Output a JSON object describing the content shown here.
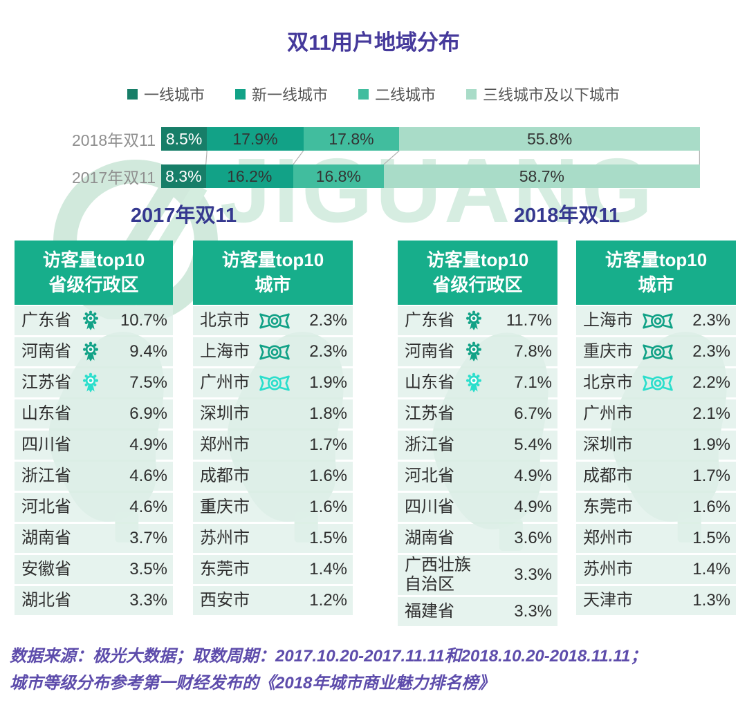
{
  "title": "双11用户地域分布",
  "watermark": {
    "text": "JIGUANG"
  },
  "colors": {
    "title": "#45399B",
    "section_heading": "#35388F",
    "header_green": "#17AE8B",
    "footer_purple": "#5D4CAB",
    "row_bg": "#E3F1EA",
    "series": [
      "#177E68",
      "#12A287",
      "#41BD9E",
      "#A9DCC8"
    ],
    "medal_primary": "#12A287",
    "medal_third": "#2BDECC",
    "connector_gray": "#b3b3b3"
  },
  "chart_data": {
    "type": "bar",
    "stacked": true,
    "orientation": "horizontal",
    "title": "双11用户地域分布",
    "categories": [
      "2018年双11",
      "2017年双11"
    ],
    "legend": [
      "一线城市",
      "新一线城市",
      "二线城市",
      "三线城市及以下城市"
    ],
    "series": [
      {
        "name": "一线城市",
        "values": [
          8.5,
          8.3
        ]
      },
      {
        "name": "新一线城市",
        "values": [
          17.9,
          16.2
        ]
      },
      {
        "name": "二线城市",
        "values": [
          17.8,
          16.8
        ]
      },
      {
        "name": "三线城市及以下城市",
        "values": [
          55.8,
          58.7
        ]
      }
    ],
    "unit": "%",
    "xlim": [
      0,
      100
    ],
    "legend_position": "top",
    "grid": false
  },
  "sections": [
    {
      "heading": "2017年双11",
      "tables": [
        {
          "header": [
            "访客量top10",
            "省级行政区"
          ],
          "icon": "rosette",
          "rows": [
            {
              "name": "广东省",
              "value": "10.7%",
              "medal": 1
            },
            {
              "name": "河南省",
              "value": "9.4%",
              "medal": 2
            },
            {
              "name": "江苏省",
              "value": "7.5%",
              "medal": 3
            },
            {
              "name": "山东省",
              "value": "6.9%",
              "medal": null
            },
            {
              "name": "四川省",
              "value": "4.9%",
              "medal": null
            },
            {
              "name": "浙江省",
              "value": "4.6%",
              "medal": null
            },
            {
              "name": "河北省",
              "value": "4.6%",
              "medal": null
            },
            {
              "name": "湖南省",
              "value": "3.7%",
              "medal": null
            },
            {
              "name": "安徽省",
              "value": "3.5%",
              "medal": null
            },
            {
              "name": "湖北省",
              "value": "3.3%",
              "medal": null
            }
          ]
        },
        {
          "header": [
            "访客量top10",
            "城市"
          ],
          "icon": "ribbon",
          "rows": [
            {
              "name": "北京市",
              "value": "2.3%",
              "medal": 1
            },
            {
              "name": "上海市",
              "value": "2.3%",
              "medal": 2
            },
            {
              "name": "广州市",
              "value": "1.9%",
              "medal": 3
            },
            {
              "name": "深圳市",
              "value": "1.8%",
              "medal": null
            },
            {
              "name": "郑州市",
              "value": "1.7%",
              "medal": null
            },
            {
              "name": "成都市",
              "value": "1.6%",
              "medal": null
            },
            {
              "name": "重庆市",
              "value": "1.6%",
              "medal": null
            },
            {
              "name": "苏州市",
              "value": "1.5%",
              "medal": null
            },
            {
              "name": "东莞市",
              "value": "1.4%",
              "medal": null
            },
            {
              "name": "西安市",
              "value": "1.2%",
              "medal": null
            }
          ]
        }
      ]
    },
    {
      "heading": "2018年双11",
      "tables": [
        {
          "header": [
            "访客量top10",
            "省级行政区"
          ],
          "icon": "rosette",
          "rows": [
            {
              "name": "广东省",
              "value": "11.7%",
              "medal": 1
            },
            {
              "name": "河南省",
              "value": "7.8%",
              "medal": 2
            },
            {
              "name": "山东省",
              "value": "7.1%",
              "medal": 3
            },
            {
              "name": "江苏省",
              "value": "6.7%",
              "medal": null
            },
            {
              "name": "浙江省",
              "value": "5.4%",
              "medal": null
            },
            {
              "name": "河北省",
              "value": "4.9%",
              "medal": null
            },
            {
              "name": "四川省",
              "value": "4.9%",
              "medal": null
            },
            {
              "name": "湖南省",
              "value": "3.6%",
              "medal": null
            },
            {
              "name": "广西壮族\n自治区",
              "value": "3.3%",
              "medal": null,
              "tall": true
            },
            {
              "name": "福建省",
              "value": "3.3%",
              "medal": null
            }
          ]
        },
        {
          "header": [
            "访客量top10",
            "城市"
          ],
          "icon": "ribbon",
          "rows": [
            {
              "name": "上海市",
              "value": "2.3%",
              "medal": 1
            },
            {
              "name": "重庆市",
              "value": "2.3%",
              "medal": 2
            },
            {
              "name": "北京市",
              "value": "2.2%",
              "medal": 3
            },
            {
              "name": "广州市",
              "value": "2.1%",
              "medal": null
            },
            {
              "name": "深圳市",
              "value": "1.9%",
              "medal": null
            },
            {
              "name": "成都市",
              "value": "1.7%",
              "medal": null
            },
            {
              "name": "东莞市",
              "value": "1.6%",
              "medal": null
            },
            {
              "name": "郑州市",
              "value": "1.5%",
              "medal": null
            },
            {
              "name": "苏州市",
              "value": "1.4%",
              "medal": null
            },
            {
              "name": "天津市",
              "value": "1.3%",
              "medal": null
            }
          ]
        }
      ]
    }
  ],
  "footer": {
    "line1": "数据来源：极光大数据；取数周期：2017.10.20-2017.11.11和2018.10.20-2018.11.11；",
    "line2": "城市等级分布参考第一财经发布的《2018年城市商业魅力排名榜》"
  }
}
